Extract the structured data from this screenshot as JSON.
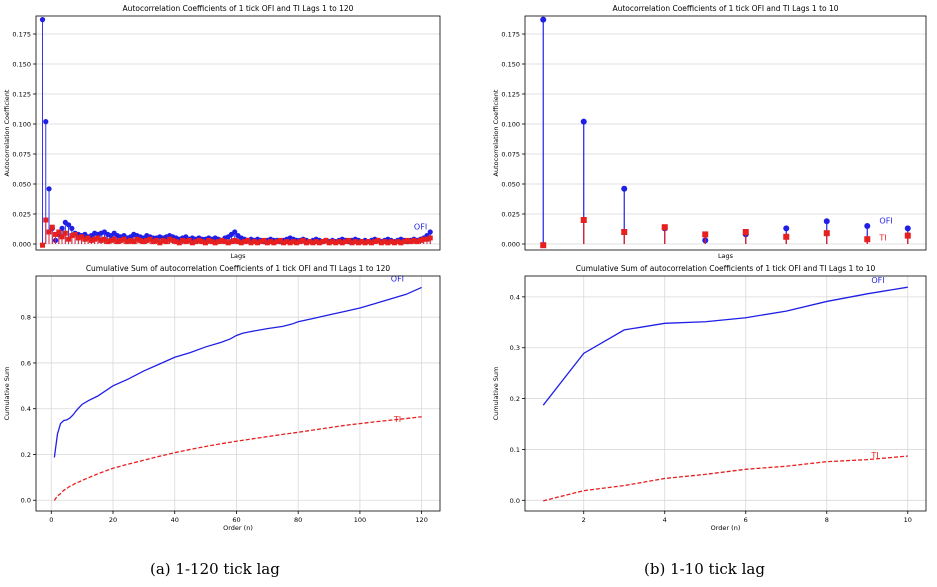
{
  "colors": {
    "ofi": "#1f1fe6",
    "ti": "#e61f1f",
    "grid": "#d9d9d9",
    "axis": "#000000"
  },
  "captions": {
    "a": "(a) 1-120 tick lag",
    "b": "(b) 1-10 tick lag"
  },
  "chart_data": [
    {
      "id": "acf_120",
      "type": "stem",
      "title": "Autocorrelation Coefficients of 1 tick OFI and TI Lags 1 to 120",
      "xlabel": "Lags",
      "ylabel": "Autocorrelation Coefficient",
      "xlim": [
        -1,
        123
      ],
      "ylim": [
        -0.005,
        0.19
      ],
      "xticks": [],
      "yticks": [
        0.0,
        0.025,
        0.05,
        0.075,
        0.1,
        0.125,
        0.15,
        0.175
      ],
      "ytick_labels": [
        "0.000",
        "0.025",
        "0.050",
        "0.075",
        "0.100",
        "0.125",
        "0.150",
        "0.175"
      ],
      "grid": true,
      "legend": "inline labels near right end",
      "series": [
        {
          "name": "OFI",
          "marker": "circle",
          "label_at": [
            115,
            0.012
          ],
          "x": [
            1,
            2,
            3,
            4,
            5,
            6,
            7,
            8,
            9,
            10,
            11,
            12,
            13,
            14,
            15,
            16,
            17,
            18,
            19,
            20,
            21,
            22,
            23,
            24,
            25,
            26,
            27,
            28,
            29,
            30,
            31,
            32,
            33,
            34,
            35,
            36,
            37,
            38,
            39,
            40,
            41,
            42,
            43,
            44,
            45,
            46,
            47,
            48,
            49,
            50,
            51,
            52,
            53,
            54,
            55,
            56,
            57,
            58,
            59,
            60,
            61,
            62,
            63,
            64,
            65,
            66,
            67,
            68,
            69,
            70,
            71,
            72,
            73,
            74,
            75,
            76,
            77,
            78,
            79,
            80,
            81,
            82,
            83,
            84,
            85,
            86,
            87,
            88,
            89,
            90,
            91,
            92,
            93,
            94,
            95,
            96,
            97,
            98,
            99,
            100,
            101,
            102,
            103,
            104,
            105,
            106,
            107,
            108,
            109,
            110,
            111,
            112,
            113,
            114,
            115,
            116,
            117,
            118,
            119,
            120
          ],
          "values": [
            0.187,
            0.102,
            0.046,
            0.013,
            0.003,
            0.008,
            0.013,
            0.018,
            0.016,
            0.013,
            0.009,
            0.008,
            0.007,
            0.008,
            0.006,
            0.007,
            0.009,
            0.008,
            0.009,
            0.01,
            0.008,
            0.007,
            0.009,
            0.007,
            0.006,
            0.007,
            0.005,
            0.006,
            0.008,
            0.007,
            0.006,
            0.005,
            0.007,
            0.006,
            0.005,
            0.005,
            0.006,
            0.005,
            0.006,
            0.007,
            0.006,
            0.005,
            0.004,
            0.005,
            0.006,
            0.004,
            0.005,
            0.004,
            0.005,
            0.004,
            0.004,
            0.005,
            0.004,
            0.005,
            0.004,
            0.003,
            0.005,
            0.006,
            0.008,
            0.01,
            0.007,
            0.005,
            0.004,
            0.003,
            0.004,
            0.003,
            0.004,
            0.003,
            0.002,
            0.003,
            0.004,
            0.003,
            0.003,
            0.002,
            0.003,
            0.004,
            0.005,
            0.004,
            0.003,
            0.003,
            0.004,
            0.003,
            0.002,
            0.003,
            0.004,
            0.003,
            0.002,
            0.003,
            0.002,
            0.003,
            0.002,
            0.003,
            0.004,
            0.003,
            0.002,
            0.003,
            0.004,
            0.003,
            0.002,
            0.003,
            0.002,
            0.003,
            0.004,
            0.003,
            0.002,
            0.003,
            0.004,
            0.003,
            0.002,
            0.003,
            0.004,
            0.003,
            0.002,
            0.003,
            0.004,
            0.003,
            0.004,
            0.005,
            0.007,
            0.01
          ]
        },
        {
          "name": "TI",
          "marker": "square",
          "x": [
            1,
            2,
            3,
            4,
            5,
            6,
            7,
            8,
            9,
            10,
            11,
            12,
            13,
            14,
            15,
            16,
            17,
            18,
            19,
            20,
            21,
            22,
            23,
            24,
            25,
            26,
            27,
            28,
            29,
            30,
            31,
            32,
            33,
            34,
            35,
            36,
            37,
            38,
            39,
            40,
            41,
            42,
            43,
            44,
            45,
            46,
            47,
            48,
            49,
            50,
            51,
            52,
            53,
            54,
            55,
            56,
            57,
            58,
            59,
            60,
            61,
            62,
            63,
            64,
            65,
            66,
            67,
            68,
            69,
            70,
            71,
            72,
            73,
            74,
            75,
            76,
            77,
            78,
            79,
            80,
            81,
            82,
            83,
            84,
            85,
            86,
            87,
            88,
            89,
            90,
            91,
            92,
            93,
            94,
            95,
            96,
            97,
            98,
            99,
            100,
            101,
            102,
            103,
            104,
            105,
            106,
            107,
            108,
            109,
            110,
            111,
            112,
            113,
            114,
            115,
            116,
            117,
            118,
            119,
            120
          ],
          "values": [
            -0.001,
            0.02,
            0.01,
            0.014,
            0.008,
            0.01,
            0.006,
            0.009,
            0.004,
            0.007,
            0.008,
            0.005,
            0.006,
            0.004,
            0.005,
            0.003,
            0.004,
            0.005,
            0.003,
            0.004,
            0.002,
            0.003,
            0.004,
            0.002,
            0.003,
            0.004,
            0.002,
            0.003,
            0.002,
            0.004,
            0.003,
            0.002,
            0.003,
            0.004,
            0.002,
            0.003,
            0.001,
            0.003,
            0.002,
            0.004,
            0.003,
            0.002,
            0.001,
            0.003,
            0.002,
            0.003,
            0.001,
            0.002,
            0.003,
            0.002,
            0.001,
            0.003,
            0.002,
            0.001,
            0.002,
            0.003,
            0.002,
            0.001,
            0.002,
            0.003,
            0.002,
            0.001,
            0.002,
            0.003,
            0.001,
            0.002,
            0.001,
            0.002,
            0.003,
            0.001,
            0.002,
            0.001,
            0.002,
            0.003,
            0.001,
            0.002,
            0.001,
            0.002,
            0.001,
            0.002,
            0.003,
            0.001,
            0.002,
            0.001,
            0.002,
            0.001,
            0.002,
            0.003,
            0.001,
            0.002,
            0.001,
            0.002,
            0.001,
            0.002,
            0.003,
            0.001,
            0.002,
            0.001,
            0.002,
            0.001,
            0.002,
            0.001,
            0.002,
            0.003,
            0.001,
            0.002,
            0.001,
            0.002,
            0.001,
            0.002,
            0.001,
            0.002,
            0.003,
            0.002,
            0.003,
            0.002,
            0.003,
            0.004,
            0.004,
            0.005
          ]
        }
      ]
    },
    {
      "id": "acf_10",
      "type": "stem",
      "title": "Autocorrelation Coefficients of 1 tick OFI and TI Lags 1 to 10",
      "xlabel": "Lags",
      "ylabel": "Autocorrelation Coefficient",
      "xlim": [
        0.55,
        10.45
      ],
      "ylim": [
        -0.005,
        0.19
      ],
      "xticks": [],
      "yticks": [
        0.0,
        0.025,
        0.05,
        0.075,
        0.1,
        0.125,
        0.15,
        0.175
      ],
      "ytick_labels": [
        "0.000",
        "0.025",
        "0.050",
        "0.075",
        "0.100",
        "0.125",
        "0.150",
        "0.175"
      ],
      "grid": true,
      "legend": "inline labels near right end",
      "series": [
        {
          "name": "OFI",
          "marker": "circle",
          "label_at": [
            9.3,
            0.017
          ],
          "x": [
            1,
            2,
            3,
            4,
            5,
            6,
            7,
            8,
            9,
            10
          ],
          "values": [
            0.187,
            0.102,
            0.046,
            0.013,
            0.003,
            0.008,
            0.013,
            0.019,
            0.015,
            0.013
          ]
        },
        {
          "name": "TI",
          "marker": "square",
          "label_at": [
            9.3,
            0.003
          ],
          "x": [
            1,
            2,
            3,
            4,
            5,
            6,
            7,
            8,
            9,
            10
          ],
          "values": [
            -0.001,
            0.02,
            0.01,
            0.014,
            0.008,
            0.01,
            0.006,
            0.009,
            0.004,
            0.007
          ]
        }
      ]
    },
    {
      "id": "cum_120",
      "type": "line",
      "title": "Cumulative Sum of autocorrelation Coefficients of 1 tick OFI and TI Lags 1 to 120",
      "xlabel": "Order (n)",
      "ylabel": "Cumulative Sum",
      "xlim": [
        -4.95,
        125.95
      ],
      "ylim": [
        -0.047,
        0.98
      ],
      "xticks": [
        0,
        20,
        40,
        60,
        80,
        100,
        120
      ],
      "xtick_labels": [
        "0",
        "20",
        "40",
        "60",
        "80",
        "100",
        "120"
      ],
      "yticks": [
        0.0,
        0.2,
        0.4,
        0.6,
        0.8
      ],
      "ytick_labels": [
        "0.0",
        "0.2",
        "0.4",
        "0.6",
        "0.8"
      ],
      "grid": true,
      "legend": "inline labels near right end",
      "series": [
        {
          "name": "OFI",
          "style": "solid",
          "label_at": [
            110,
            0.955
          ],
          "x": [
            1,
            2,
            3,
            4,
            5,
            6,
            7,
            8,
            9,
            10,
            12,
            15,
            20,
            25,
            30,
            35,
            40,
            45,
            50,
            55,
            58,
            60,
            62,
            65,
            70,
            75,
            78,
            80,
            85,
            90,
            95,
            100,
            105,
            110,
            115,
            120
          ],
          "values": [
            0.187,
            0.289,
            0.335,
            0.348,
            0.351,
            0.359,
            0.372,
            0.39,
            0.405,
            0.419,
            0.435,
            0.455,
            0.5,
            0.53,
            0.565,
            0.595,
            0.625,
            0.645,
            0.67,
            0.69,
            0.705,
            0.72,
            0.73,
            0.738,
            0.75,
            0.76,
            0.77,
            0.78,
            0.795,
            0.81,
            0.825,
            0.84,
            0.86,
            0.88,
            0.9,
            0.93
          ]
        },
        {
          "name": "TI",
          "style": "dashed",
          "label_at": [
            111,
            0.343
          ],
          "x": [
            1,
            2,
            3,
            4,
            5,
            6,
            7,
            8,
            9,
            10,
            12,
            15,
            20,
            25,
            30,
            35,
            40,
            45,
            50,
            55,
            60,
            65,
            70,
            75,
            80,
            85,
            90,
            95,
            100,
            105,
            110,
            115,
            120
          ],
          "values": [
            -0.001,
            0.019,
            0.029,
            0.043,
            0.051,
            0.061,
            0.067,
            0.076,
            0.08,
            0.087,
            0.098,
            0.115,
            0.14,
            0.158,
            0.175,
            0.192,
            0.208,
            0.222,
            0.235,
            0.247,
            0.258,
            0.268,
            0.278,
            0.288,
            0.297,
            0.307,
            0.317,
            0.327,
            0.335,
            0.343,
            0.35,
            0.357,
            0.365
          ]
        }
      ]
    },
    {
      "id": "cum_10",
      "type": "line",
      "title": "Cumulative Sum of autocorrelation Coefficients of 1 tick OFI and TI Lags 1 to 10",
      "xlabel": "Order (n)",
      "ylabel": "Cumulative Sum",
      "xlim": [
        0.55,
        10.45
      ],
      "ylim": [
        -0.021,
        0.441
      ],
      "xticks": [
        2,
        4,
        6,
        8,
        10
      ],
      "xtick_labels": [
        "2",
        "4",
        "6",
        "8",
        "10"
      ],
      "yticks": [
        0.0,
        0.1,
        0.2,
        0.3,
        0.4
      ],
      "ytick_labels": [
        "0.0",
        "0.1",
        "0.2",
        "0.3",
        "0.4"
      ],
      "grid": true,
      "legend": "inline labels near right end",
      "series": [
        {
          "name": "OFI",
          "style": "solid",
          "label_at": [
            9.1,
            0.427
          ],
          "x": [
            1,
            2,
            3,
            4,
            5,
            6,
            7,
            8,
            9,
            10
          ],
          "values": [
            0.187,
            0.289,
            0.335,
            0.348,
            0.351,
            0.359,
            0.372,
            0.391,
            0.406,
            0.419
          ]
        },
        {
          "name": "TI",
          "style": "dashed",
          "label_at": [
            9.1,
            0.083
          ],
          "x": [
            1,
            2,
            3,
            4,
            5,
            6,
            7,
            8,
            9,
            10
          ],
          "values": [
            -0.001,
            0.019,
            0.029,
            0.043,
            0.051,
            0.061,
            0.067,
            0.076,
            0.08,
            0.087
          ]
        }
      ]
    }
  ]
}
